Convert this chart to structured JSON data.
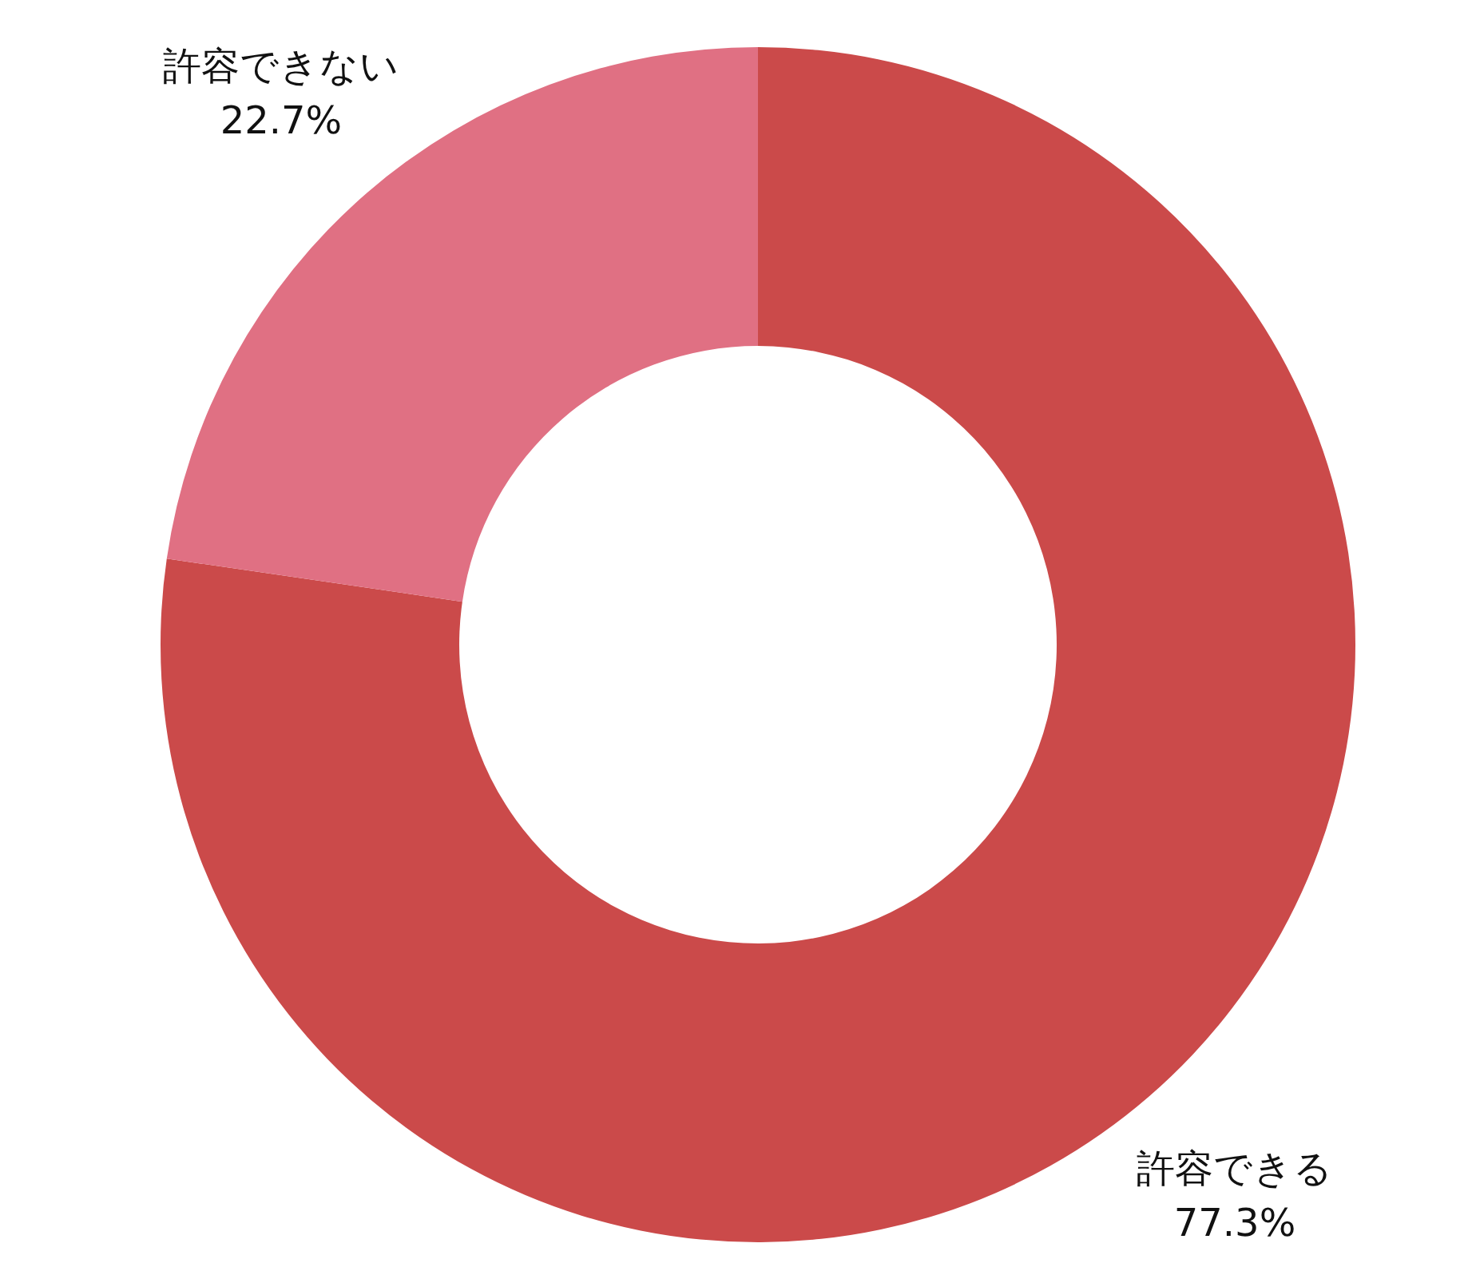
{
  "chart_data": {
    "type": "donut",
    "categories": [
      "許容できる",
      "許容できない"
    ],
    "values": [
      77.3,
      22.7
    ],
    "colors": [
      "#cb4a4a",
      "#e07083"
    ],
    "value_labels": [
      "77.3%",
      "22.7%"
    ]
  }
}
